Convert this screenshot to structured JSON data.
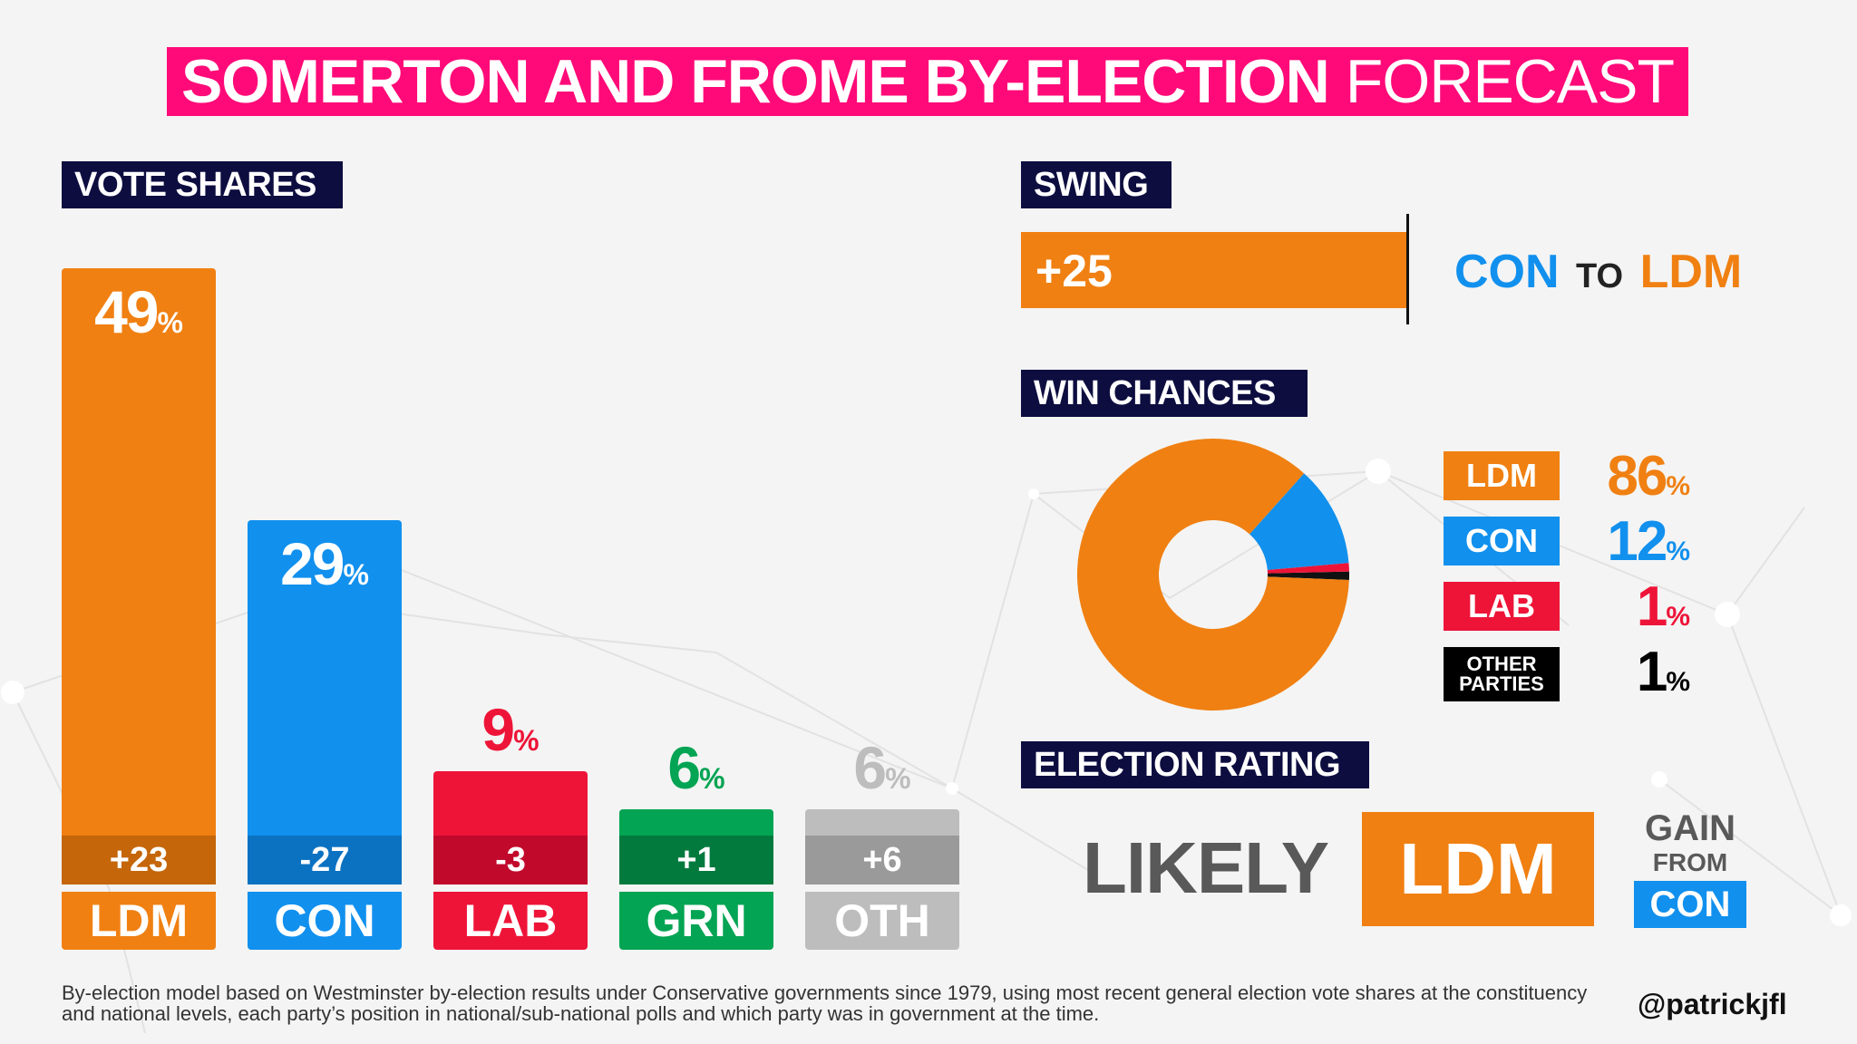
{
  "title": {
    "bold": "SOMERTON AND FROME BY-ELECTION",
    "light": "FORECAST"
  },
  "sections": {
    "vote_shares": "VOTE SHARES",
    "swing": "SWING",
    "win_chances": "WIN CHANCES",
    "election_rating": "ELECTION RATING"
  },
  "colors": {
    "LDM": "#f08012",
    "CON": "#1190ee",
    "LAB": "#ee1438",
    "GRN": "#03a453",
    "OTH": "#bdbdbd",
    "OTHER": "#000000",
    "title": "#ff0a78",
    "label": "#0d0d40"
  },
  "pct_sign": "%",
  "swing": {
    "value_label": "+25",
    "from": "CON",
    "to_word": "TO",
    "to": "LDM"
  },
  "rating": {
    "likely": "LIKELY",
    "party": "LDM",
    "gain": "GAIN",
    "from_word": "FROM",
    "from_party": "CON"
  },
  "footnote": "By-election model based on Westminster by-election results under Conservative governments since 1979, using most recent general election vote shares at the constituency and national levels, each party’s position in national/sub-national polls and which party was in government at the time.",
  "handle": "@patrickjfl",
  "chart_data": [
    {
      "type": "bar",
      "title": "VOTE SHARES",
      "categories": [
        "LDM",
        "CON",
        "LAB",
        "GRN",
        "OTH"
      ],
      "values": [
        49,
        29,
        9,
        6,
        6
      ],
      "value_labels": [
        "49",
        "29",
        "9",
        "6",
        "6"
      ],
      "change_labels": [
        "+23",
        "-27",
        "-3",
        "+1",
        "+6"
      ],
      "changes": [
        23,
        -27,
        -3,
        1,
        6
      ],
      "ylim": [
        0,
        49
      ]
    },
    {
      "type": "pie",
      "title": "WIN CHANCES",
      "categories": [
        "LDM",
        "CON",
        "LAB",
        "OTHER PARTIES"
      ],
      "tag_labels": [
        [
          "LDM"
        ],
        [
          "CON"
        ],
        [
          "LAB"
        ],
        [
          "OTHER",
          "PARTIES"
        ]
      ],
      "values": [
        86,
        12,
        1,
        1
      ],
      "value_labels": [
        "86",
        "12",
        "1",
        "1"
      ]
    },
    {
      "type": "bar",
      "title": "SWING",
      "categories": [
        "CON to LDM"
      ],
      "values": [
        25
      ],
      "value_labels": [
        "+25"
      ]
    }
  ]
}
